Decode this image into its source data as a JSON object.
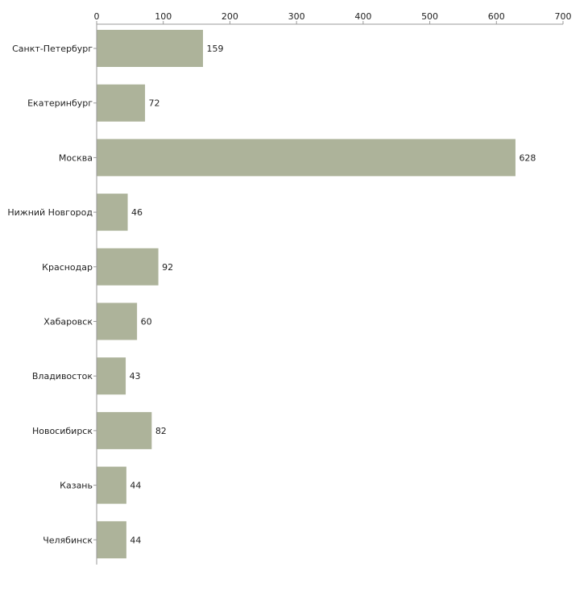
{
  "chart_data": {
    "type": "bar",
    "orientation": "horizontal",
    "title": "",
    "xlabel": "",
    "ylabel": "",
    "xlim": [
      0,
      700
    ],
    "ticks": [
      0,
      100,
      200,
      300,
      400,
      500,
      600,
      700
    ],
    "tick_labels": [
      "0",
      "100",
      "200",
      "300",
      "400",
      "500",
      "600",
      "700"
    ],
    "axis_position": "top",
    "grid": false,
    "categories": [
      "Санкт-Петербург",
      "Екатеринбург",
      "Москва",
      "Нижний Новгород",
      "Краснодар",
      "Хабаровск",
      "Владивосток",
      "Новосибирск",
      "Казань",
      "Челябинск"
    ],
    "values": [
      159,
      72,
      628,
      46,
      92,
      60,
      43,
      82,
      44,
      44
    ],
    "data_labels": [
      "159",
      "72",
      "628",
      "46",
      "92",
      "60",
      "43",
      "82",
      "44",
      "44"
    ],
    "colors": {
      "bar": "#adb39a",
      "axis": "#9a9a9a",
      "text": "#222222"
    }
  }
}
